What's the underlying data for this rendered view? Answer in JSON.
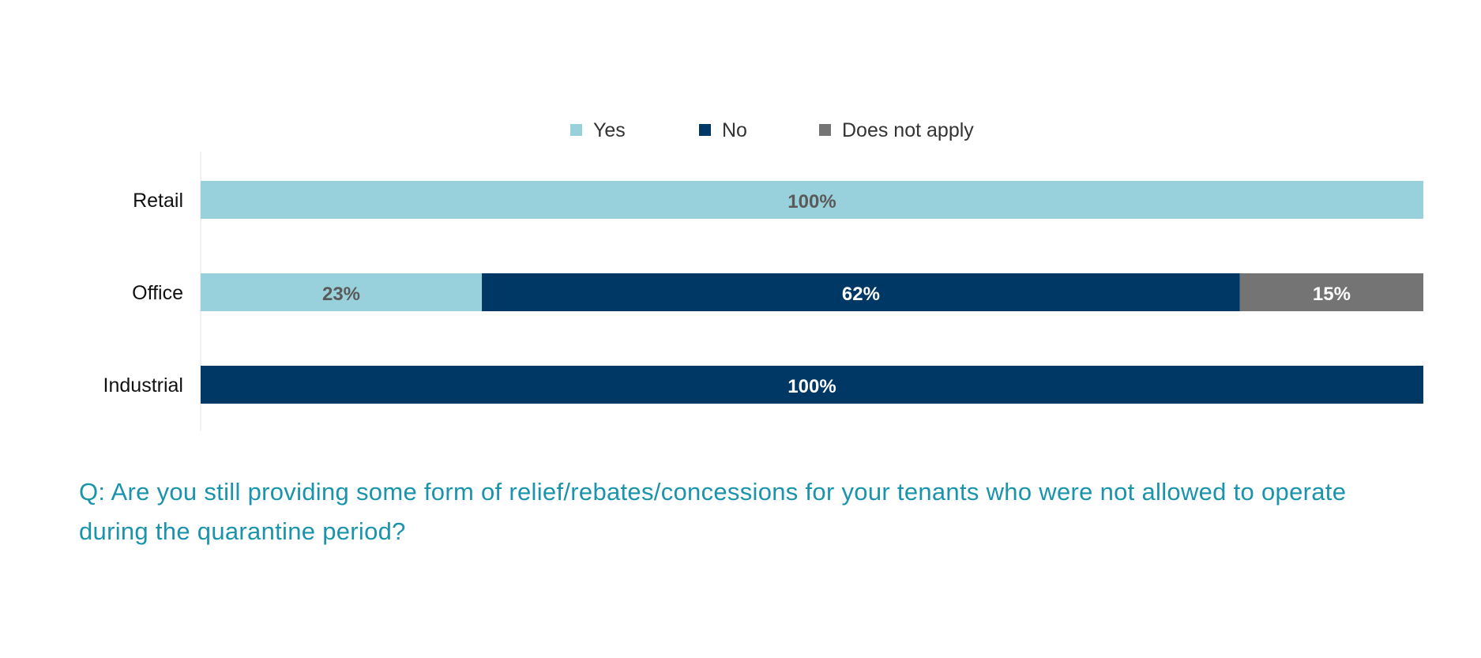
{
  "chart_data": {
    "type": "bar",
    "orientation": "horizontal",
    "stacked": true,
    "categories": [
      "Retail",
      "Office",
      "Industrial"
    ],
    "series": [
      {
        "name": "Yes",
        "values": [
          100,
          23,
          0
        ],
        "color": "#98d1dc",
        "label_color": "#5a5a5a"
      },
      {
        "name": "No",
        "values": [
          0,
          62,
          100
        ],
        "color": "#003865",
        "label_color": "#ffffff"
      },
      {
        "name": "Does not apply",
        "values": [
          0,
          15,
          0
        ],
        "color": "#747474",
        "label_color": "#ffffff"
      }
    ],
    "xlim": [
      0,
      100
    ],
    "value_suffix": "%",
    "legend_position": "top",
    "grid": false
  },
  "question": "Q: Are you still providing some form of relief/rebates/concessions for your tenants who were not allowed to operate during the quarantine period?"
}
